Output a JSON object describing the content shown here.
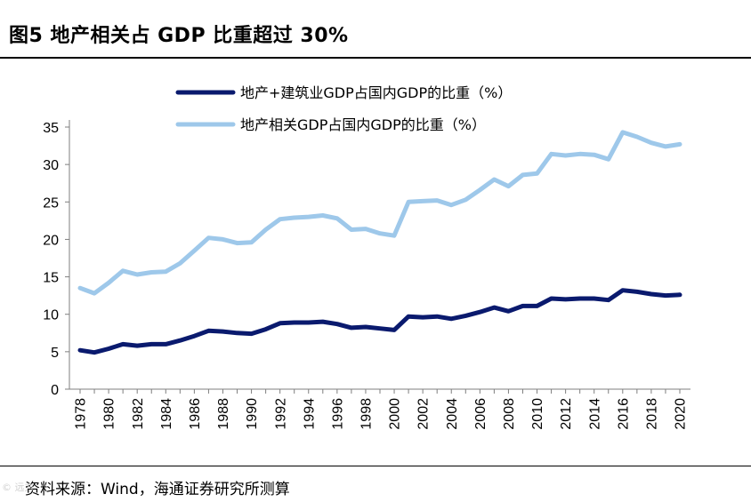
{
  "header": {
    "title": "图5  地产相关占 GDP 比重超过 30%"
  },
  "footer": {
    "source": "资料来源：Wind，海通证券研究所测算",
    "watermark": "© 远方"
  },
  "chart_data": {
    "type": "line",
    "title": "图5  地产相关占 GDP 比重超过 30%",
    "xlabel": "",
    "ylabel": "",
    "ylim": [
      0,
      35
    ],
    "yticks": [
      0,
      5,
      10,
      15,
      20,
      25,
      30,
      35
    ],
    "xlim": [
      1978,
      2020
    ],
    "xticks": [
      "1978",
      "1980",
      "1982",
      "1984",
      "1986",
      "1988",
      "1990",
      "1992",
      "1994",
      "1996",
      "1998",
      "2000",
      "2002",
      "2004",
      "2006",
      "2008",
      "2010",
      "2012",
      "2014",
      "2016",
      "2018",
      "2020"
    ],
    "legend_position": "top",
    "x": [
      1978,
      1979,
      1980,
      1981,
      1982,
      1983,
      1984,
      1985,
      1986,
      1987,
      1988,
      1989,
      1990,
      1991,
      1992,
      1993,
      1994,
      1995,
      1996,
      1997,
      1998,
      1999,
      2000,
      2001,
      2002,
      2003,
      2004,
      2005,
      2006,
      2007,
      2008,
      2009,
      2010,
      2011,
      2012,
      2013,
      2014,
      2015,
      2016,
      2017,
      2018,
      2019,
      2020
    ],
    "series": [
      {
        "name": "地产+建筑业GDP占国内GDP的比重（%）",
        "color": "#0a1a6e",
        "values": [
          5.2,
          4.9,
          5.4,
          6.0,
          5.8,
          6.0,
          6.0,
          6.5,
          7.1,
          7.8,
          7.7,
          7.5,
          7.4,
          8.0,
          8.8,
          8.9,
          8.9,
          9.0,
          8.7,
          8.2,
          8.3,
          8.1,
          7.9,
          9.7,
          9.6,
          9.7,
          9.4,
          9.8,
          10.3,
          10.9,
          10.4,
          11.1,
          11.1,
          12.1,
          12.0,
          12.1,
          12.1,
          11.9,
          13.2,
          13.0,
          12.7,
          12.5,
          12.6
        ]
      },
      {
        "name": "地产相关GDP占国内GDP的比重（%）",
        "color": "#9ec8ea",
        "values": [
          13.5,
          12.8,
          14.2,
          15.8,
          15.3,
          15.6,
          15.7,
          16.8,
          18.5,
          20.2,
          20.0,
          19.5,
          19.6,
          21.3,
          22.7,
          22.9,
          23.0,
          23.2,
          22.8,
          21.3,
          21.4,
          20.8,
          20.5,
          25.0,
          25.1,
          25.2,
          24.6,
          25.3,
          26.6,
          28.0,
          27.1,
          28.6,
          28.8,
          31.4,
          31.2,
          31.4,
          31.3,
          30.7,
          34.3,
          33.7,
          32.9,
          32.4,
          32.7
        ]
      }
    ]
  }
}
